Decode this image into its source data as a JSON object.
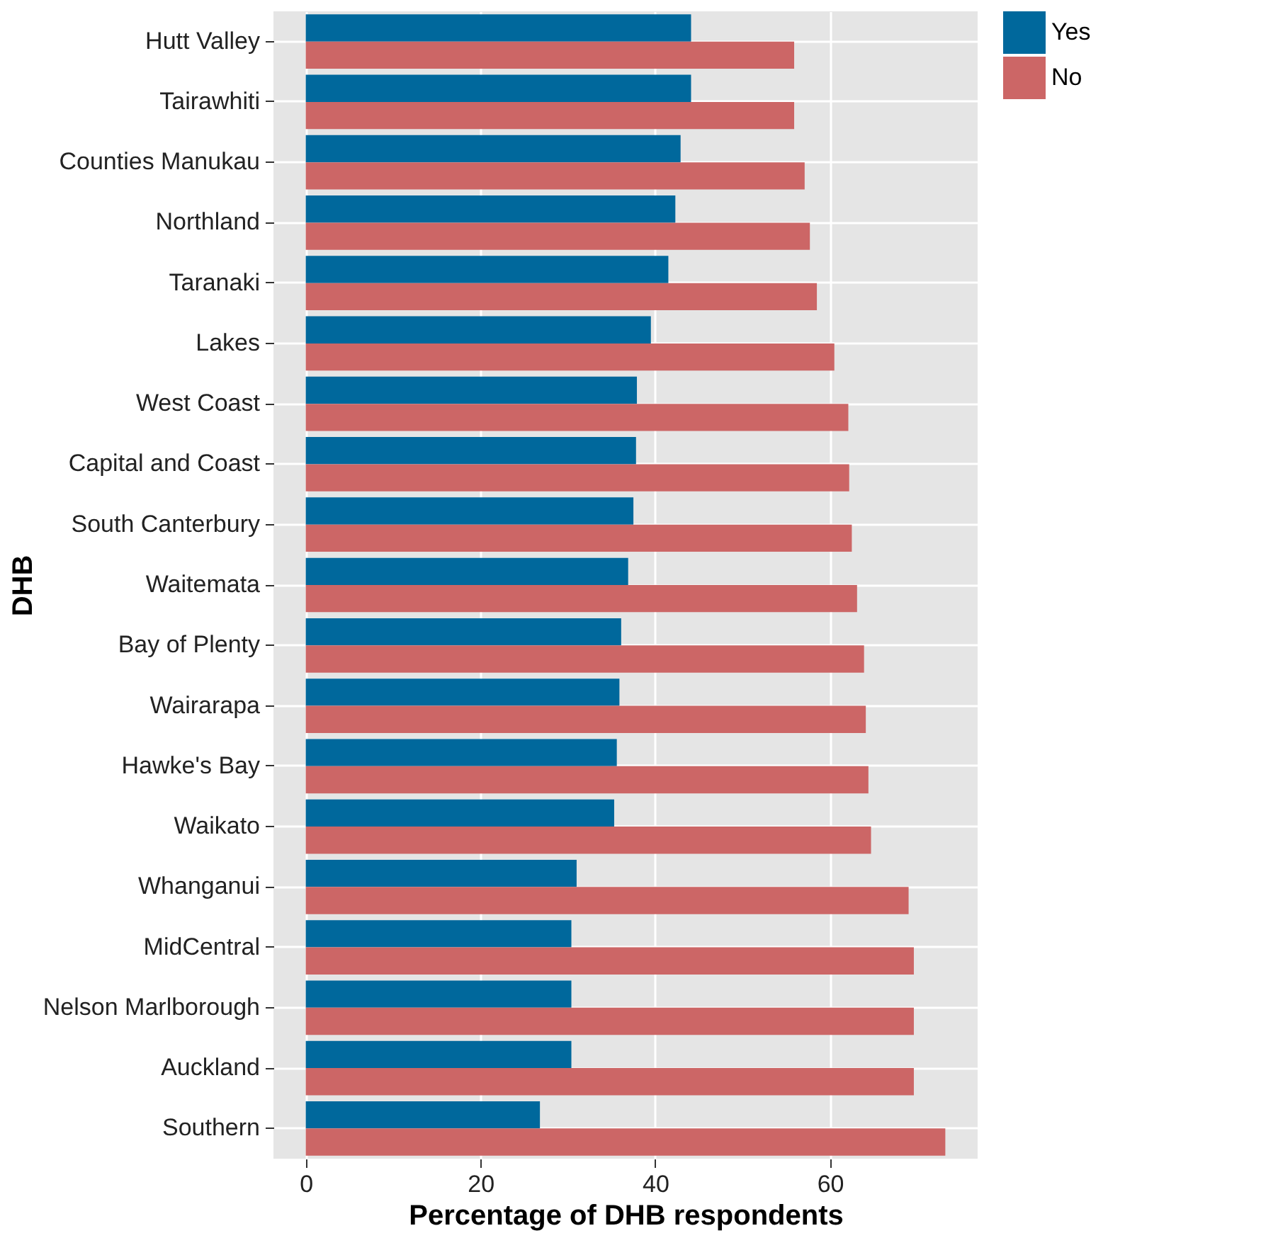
{
  "chart_data": {
    "type": "bar",
    "orientation": "horizontal",
    "xlabel": "Percentage of DHB respondents",
    "ylabel": "DHB",
    "categories": [
      "Hutt Valley",
      "Tairawhiti",
      "Counties Manukau",
      "Northland",
      "Taranaki",
      "Lakes",
      "West Coast",
      "Capital and Coast",
      "South Canterbury",
      "Waitemata",
      "Bay of Plenty",
      "Wairarapa",
      "Hawke's Bay",
      "Waikato",
      "Whanganui",
      "MidCentral",
      "Nelson Marlborough",
      "Auckland",
      "Southern"
    ],
    "series": [
      {
        "name": "Yes",
        "color": "#00689c",
        "values": [
          44.1,
          44.1,
          42.9,
          42.3,
          41.5,
          39.5,
          37.9,
          37.8,
          37.5,
          36.9,
          36.1,
          35.9,
          35.6,
          35.3,
          31.0,
          30.4,
          30.4,
          30.4,
          26.8
        ]
      },
      {
        "name": "No",
        "color": "#cc6666",
        "values": [
          55.9,
          55.9,
          57.1,
          57.7,
          58.5,
          60.5,
          62.1,
          62.2,
          62.5,
          63.1,
          63.9,
          64.1,
          64.4,
          64.7,
          69.0,
          69.6,
          69.6,
          69.6,
          73.2
        ]
      }
    ],
    "xlim": [
      -3.7,
      76.9
    ],
    "xticks": [
      0,
      20,
      40,
      60
    ],
    "grid": true,
    "legend": "right"
  }
}
